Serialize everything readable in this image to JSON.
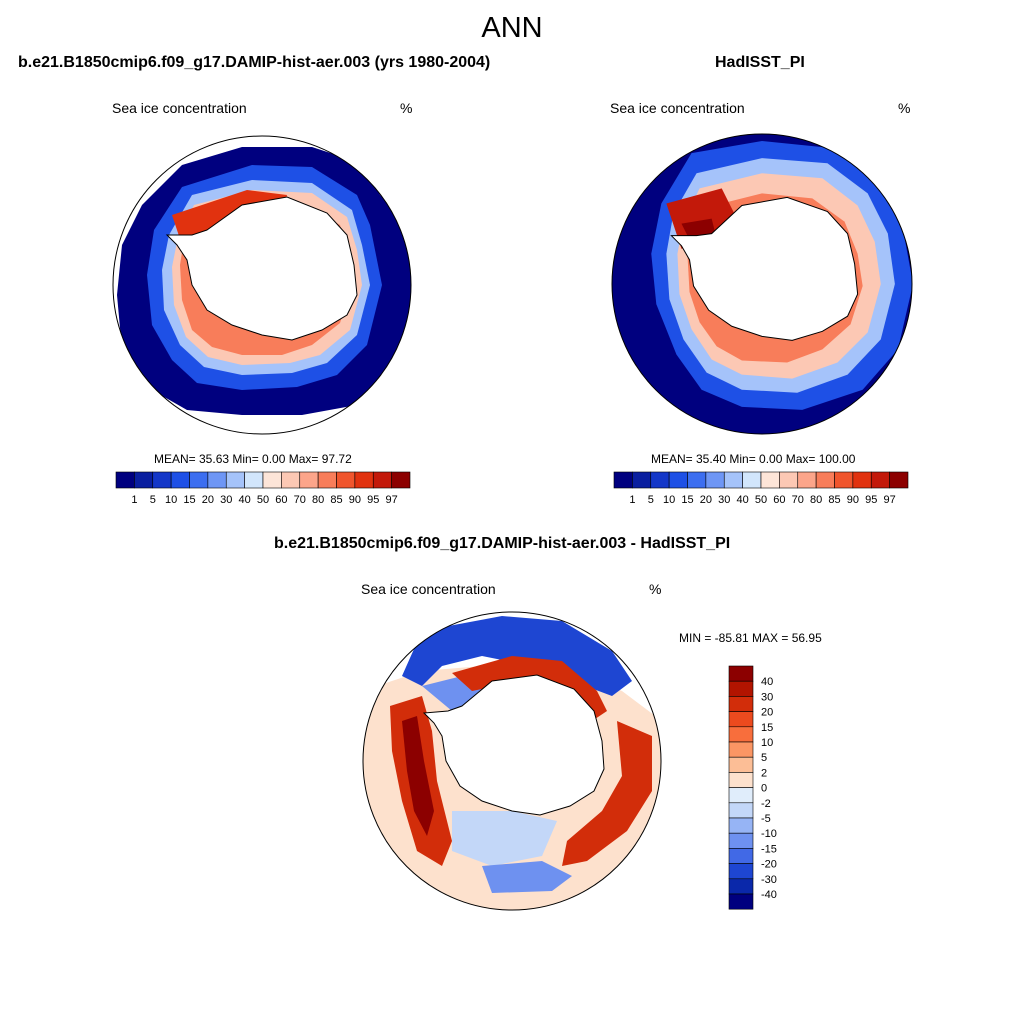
{
  "title": "ANN",
  "panels": [
    {
      "title": "b.e21.B1850cmip6.f09_g17.DAMIP-hist-aer.003 (yrs 1980-2004)",
      "left_label": "Sea ice concentration",
      "right_label": "%",
      "stats": "MEAN=  35.63  Min=   0.00  Max=  97.72"
    },
    {
      "title": "HadISST_PI",
      "left_label": "Sea ice concentration",
      "right_label": "%",
      "stats": "MEAN=  35.40  Min=   0.00  Max= 100.00"
    },
    {
      "title": "b.e21.B1850cmip6.f09_g17.DAMIP-hist-aer.003 - HadISST_PI",
      "left_label": "Sea ice concentration",
      "right_label": "%",
      "stats": "MIN = -85.81 MAX =  56.95"
    }
  ],
  "colorbar_seq": {
    "labels": [
      "1",
      "5",
      "10",
      "15",
      "20",
      "30",
      "40",
      "50",
      "60",
      "70",
      "80",
      "85",
      "90",
      "95",
      "97"
    ],
    "colors": [
      "#00007f",
      "#0a1fa0",
      "#1437c8",
      "#1e50e6",
      "#3c6ef0",
      "#6e96f5",
      "#a5c3fa",
      "#d2e6fc",
      "#fde5d8",
      "#fcc8b4",
      "#fca58a",
      "#f87d5a",
      "#f0552d",
      "#e1320f",
      "#c3190a",
      "#8c0000"
    ]
  },
  "colorbar_diff": {
    "labels": [
      "40",
      "30",
      "20",
      "15",
      "10",
      "5",
      "2",
      "0",
      "-2",
      "-5",
      "-10",
      "-15",
      "-20",
      "-30",
      "-40"
    ],
    "colors": [
      "#8c0000",
      "#b21400",
      "#d22d0a",
      "#ec4a1e",
      "#f86e3c",
      "#fb9664",
      "#fcbe96",
      "#fde1cd",
      "#e0edfb",
      "#c3d7f8",
      "#96b4f5",
      "#6e91f0",
      "#4169e6",
      "#1e46d2",
      "#0a28aa",
      "#00007f"
    ]
  }
}
